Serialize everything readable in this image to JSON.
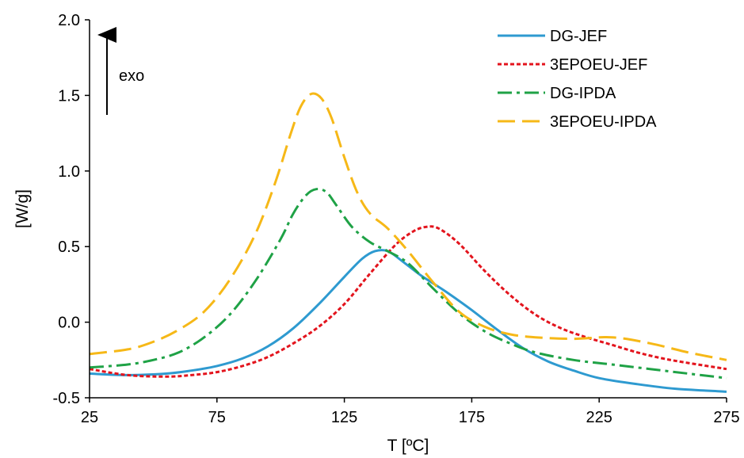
{
  "chart_data": {
    "type": "line",
    "title": "",
    "xlabel": "T [ºC]",
    "ylabel": "[W/g]",
    "xlim": [
      25,
      275
    ],
    "ylim": [
      -0.5,
      2.0
    ],
    "x_ticks": [
      25,
      75,
      125,
      175,
      225,
      275
    ],
    "y_ticks": [
      -0.5,
      0.0,
      0.5,
      1.0,
      1.5,
      2.0
    ],
    "x_tick_labels": [
      "25",
      "75",
      "125",
      "175",
      "225",
      "275"
    ],
    "y_tick_labels": [
      "-0.5",
      "0.0",
      "0.5",
      "1.0",
      "1.5",
      "2.0"
    ],
    "grid": false,
    "legend_position": "top-right",
    "annotation": {
      "text": "exo",
      "arrow": "up"
    },
    "series": [
      {
        "name": "DG-JEF",
        "color": "#2E9AD0",
        "dash": "solid",
        "points": [
          [
            25,
            -0.34
          ],
          [
            40,
            -0.35
          ],
          [
            55,
            -0.34
          ],
          [
            65,
            -0.32
          ],
          [
            75,
            -0.29
          ],
          [
            85,
            -0.24
          ],
          [
            95,
            -0.16
          ],
          [
            105,
            -0.04
          ],
          [
            115,
            0.12
          ],
          [
            125,
            0.3
          ],
          [
            132,
            0.42
          ],
          [
            137,
            0.47
          ],
          [
            142,
            0.47
          ],
          [
            148,
            0.4
          ],
          [
            155,
            0.31
          ],
          [
            165,
            0.2
          ],
          [
            175,
            0.08
          ],
          [
            185,
            -0.05
          ],
          [
            195,
            -0.17
          ],
          [
            205,
            -0.26
          ],
          [
            215,
            -0.32
          ],
          [
            225,
            -0.37
          ],
          [
            240,
            -0.41
          ],
          [
            255,
            -0.44
          ],
          [
            275,
            -0.46
          ]
        ]
      },
      {
        "name": "3EPOEU-JEF",
        "color": "#E3141D",
        "dash": "dotted",
        "points": [
          [
            25,
            -0.31
          ],
          [
            40,
            -0.35
          ],
          [
            55,
            -0.36
          ],
          [
            65,
            -0.35
          ],
          [
            75,
            -0.33
          ],
          [
            85,
            -0.29
          ],
          [
            95,
            -0.23
          ],
          [
            105,
            -0.14
          ],
          [
            115,
            -0.03
          ],
          [
            125,
            0.12
          ],
          [
            135,
            0.32
          ],
          [
            145,
            0.51
          ],
          [
            152,
            0.6
          ],
          [
            157,
            0.63
          ],
          [
            162,
            0.62
          ],
          [
            170,
            0.52
          ],
          [
            180,
            0.34
          ],
          [
            190,
            0.18
          ],
          [
            200,
            0.05
          ],
          [
            210,
            -0.04
          ],
          [
            220,
            -0.1
          ],
          [
            230,
            -0.15
          ],
          [
            240,
            -0.2
          ],
          [
            250,
            -0.24
          ],
          [
            260,
            -0.27
          ],
          [
            275,
            -0.31
          ]
        ]
      },
      {
        "name": "DG-IPDA",
        "color": "#1FA246",
        "dash": "dashdot",
        "points": [
          [
            25,
            -0.3
          ],
          [
            40,
            -0.28
          ],
          [
            50,
            -0.25
          ],
          [
            60,
            -0.2
          ],
          [
            70,
            -0.1
          ],
          [
            80,
            0.05
          ],
          [
            90,
            0.27
          ],
          [
            100,
            0.55
          ],
          [
            105,
            0.72
          ],
          [
            110,
            0.84
          ],
          [
            114,
            0.88
          ],
          [
            118,
            0.86
          ],
          [
            122,
            0.77
          ],
          [
            128,
            0.63
          ],
          [
            135,
            0.53
          ],
          [
            142,
            0.47
          ],
          [
            150,
            0.39
          ],
          [
            160,
            0.22
          ],
          [
            170,
            0.06
          ],
          [
            180,
            -0.06
          ],
          [
            190,
            -0.14
          ],
          [
            200,
            -0.2
          ],
          [
            215,
            -0.25
          ],
          [
            230,
            -0.28
          ],
          [
            245,
            -0.31
          ],
          [
            260,
            -0.34
          ],
          [
            275,
            -0.37
          ]
        ]
      },
      {
        "name": "3EPOEU-IPDA",
        "color": "#F6B817",
        "dash": "longdash",
        "points": [
          [
            25,
            -0.21
          ],
          [
            40,
            -0.18
          ],
          [
            50,
            -0.13
          ],
          [
            60,
            -0.05
          ],
          [
            70,
            0.07
          ],
          [
            80,
            0.28
          ],
          [
            90,
            0.58
          ],
          [
            98,
            0.93
          ],
          [
            104,
            1.25
          ],
          [
            108,
            1.43
          ],
          [
            112,
            1.51
          ],
          [
            116,
            1.48
          ],
          [
            120,
            1.35
          ],
          [
            125,
            1.09
          ],
          [
            130,
            0.86
          ],
          [
            135,
            0.72
          ],
          [
            142,
            0.62
          ],
          [
            150,
            0.47
          ],
          [
            160,
            0.26
          ],
          [
            170,
            0.07
          ],
          [
            180,
            -0.03
          ],
          [
            190,
            -0.08
          ],
          [
            200,
            -0.1
          ],
          [
            215,
            -0.11
          ],
          [
            230,
            -0.1
          ],
          [
            245,
            -0.14
          ],
          [
            260,
            -0.2
          ],
          [
            275,
            -0.25
          ]
        ]
      }
    ]
  }
}
